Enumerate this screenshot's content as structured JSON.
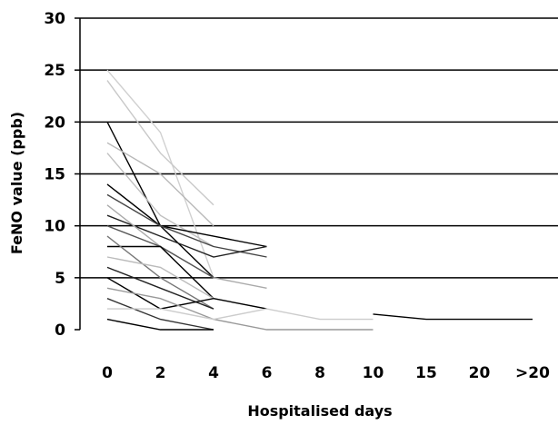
{
  "chart_data": {
    "type": "line",
    "title": "",
    "xlabel": "Hospitalised days",
    "ylabel": "FeNO value (ppb)",
    "categories": [
      "0",
      "2",
      "4",
      "6",
      "8",
      "10",
      "15",
      "20",
      ">20"
    ],
    "ylim": [
      0,
      30
    ],
    "yticks": [
      0,
      5,
      10,
      15,
      20,
      25,
      30
    ],
    "grid": true,
    "series": [
      {
        "color": "#d0d0d0",
        "points": [
          [
            0,
            25
          ],
          [
            2,
            19
          ],
          [
            4,
            5
          ]
        ]
      },
      {
        "color": "#c8c8c8",
        "points": [
          [
            0,
            24
          ],
          [
            2,
            17
          ],
          [
            4,
            12
          ]
        ]
      },
      {
        "color": "#000000",
        "points": [
          [
            0,
            20
          ],
          [
            2,
            10
          ],
          [
            4,
            5
          ]
        ]
      },
      {
        "color": "#b8b8b8",
        "points": [
          [
            0,
            18
          ],
          [
            2,
            15
          ],
          [
            4,
            10
          ]
        ]
      },
      {
        "color": "#c0c0c0",
        "points": [
          [
            0,
            17
          ],
          [
            2,
            11
          ],
          [
            4,
            8
          ]
        ]
      },
      {
        "color": "#000000",
        "points": [
          [
            0,
            14
          ],
          [
            2,
            10
          ],
          [
            4,
            9
          ],
          [
            6,
            8
          ]
        ]
      },
      {
        "color": "#444444",
        "points": [
          [
            0,
            13
          ],
          [
            2,
            10
          ],
          [
            4,
            8
          ],
          [
            6,
            7
          ]
        ]
      },
      {
        "color": "#222222",
        "points": [
          [
            0,
            11
          ],
          [
            2,
            9
          ],
          [
            4,
            7
          ],
          [
            6,
            8
          ]
        ]
      },
      {
        "color": "#aaaaaa",
        "points": [
          [
            0,
            12
          ],
          [
            2,
            8
          ],
          [
            4,
            5
          ],
          [
            6,
            4
          ]
        ]
      },
      {
        "color": "#555555",
        "points": [
          [
            0,
            10
          ],
          [
            2,
            8
          ],
          [
            4,
            5
          ]
        ]
      },
      {
        "color": "#000000",
        "points": [
          [
            0,
            8
          ],
          [
            2,
            8
          ],
          [
            4,
            3
          ]
        ]
      },
      {
        "color": "#777777",
        "points": [
          [
            0,
            9
          ],
          [
            2,
            5
          ],
          [
            4,
            2
          ]
        ]
      },
      {
        "color": "#bbbbbb",
        "points": [
          [
            0,
            7
          ],
          [
            2,
            6
          ],
          [
            4,
            3
          ],
          [
            6,
            2
          ]
        ]
      },
      {
        "color": "#222222",
        "points": [
          [
            0,
            6
          ],
          [
            2,
            4
          ],
          [
            4,
            2
          ]
        ]
      },
      {
        "color": "#000000",
        "points": [
          [
            0,
            5
          ],
          [
            2,
            2
          ],
          [
            4,
            3
          ],
          [
            6,
            2
          ]
        ]
      },
      {
        "color": "#999999",
        "points": [
          [
            0,
            4
          ],
          [
            2,
            3
          ],
          [
            4,
            1
          ],
          [
            6,
            0
          ],
          [
            8,
            0
          ],
          [
            10,
            0
          ]
        ]
      },
      {
        "color": "#333333",
        "points": [
          [
            0,
            3
          ],
          [
            2,
            1
          ],
          [
            4,
            0
          ]
        ]
      },
      {
        "color": "#cccccc",
        "points": [
          [
            0,
            2
          ],
          [
            2,
            2
          ],
          [
            4,
            1
          ],
          [
            6,
            2
          ],
          [
            8,
            1
          ],
          [
            10,
            1
          ]
        ]
      },
      {
        "color": "#000000",
        "points": [
          [
            0,
            1
          ],
          [
            2,
            0
          ],
          [
            4,
            0
          ]
        ]
      },
      {
        "color": "#000000",
        "points": [
          [
            10,
            1.5
          ],
          [
            15,
            1
          ],
          [
            20,
            1
          ],
          [
            ">20",
            1
          ]
        ]
      }
    ]
  }
}
